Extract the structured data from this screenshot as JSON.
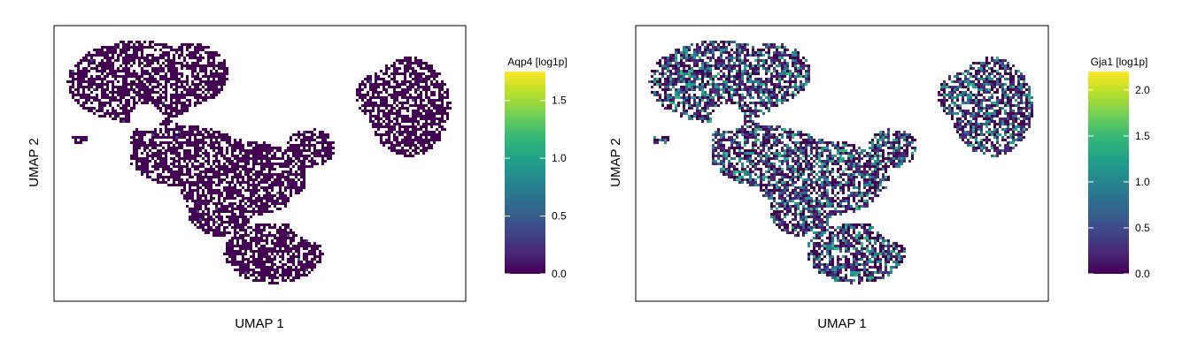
{
  "chart_data": [
    {
      "type": "heatmap",
      "subtype": "hexbin-umap-embedding",
      "xlabel": "UMAP 1",
      "ylabel": "UMAP 2",
      "colorbar_label": "Aqp4 [log1p]",
      "colorbar_ticks": [
        "0.0",
        "0.5",
        "1.0",
        "1.5"
      ],
      "colorbar_range": [
        0,
        1.75
      ],
      "colormap": "viridis",
      "expression_profile": {
        "background_level": 0.0,
        "speckle_fraction": 0.005,
        "speckle_max": 0.6,
        "hotspot_level": 1.75
      }
    },
    {
      "type": "heatmap",
      "subtype": "hexbin-umap-embedding",
      "xlabel": "UMAP 1",
      "ylabel": "UMAP 2",
      "colorbar_label": "Gja1 [log1p]",
      "colorbar_ticks": [
        "0.0",
        "0.5",
        "1.0",
        "1.5",
        "2.0"
      ],
      "colorbar_range": [
        0,
        2.2
      ],
      "colormap": "viridis",
      "expression_profile": {
        "background_level": 0.25,
        "speckle_fraction": 0.35,
        "speckle_max": 1.5,
        "hotspot_level": 2.2
      }
    }
  ],
  "colors": {
    "viridis": [
      "#440154",
      "#482878",
      "#3e4989",
      "#31688e",
      "#26828e",
      "#1f9e89",
      "#35b779",
      "#6ece58",
      "#b5de2b",
      "#fde725"
    ],
    "frame": "#000000",
    "background": "#ffffff"
  }
}
